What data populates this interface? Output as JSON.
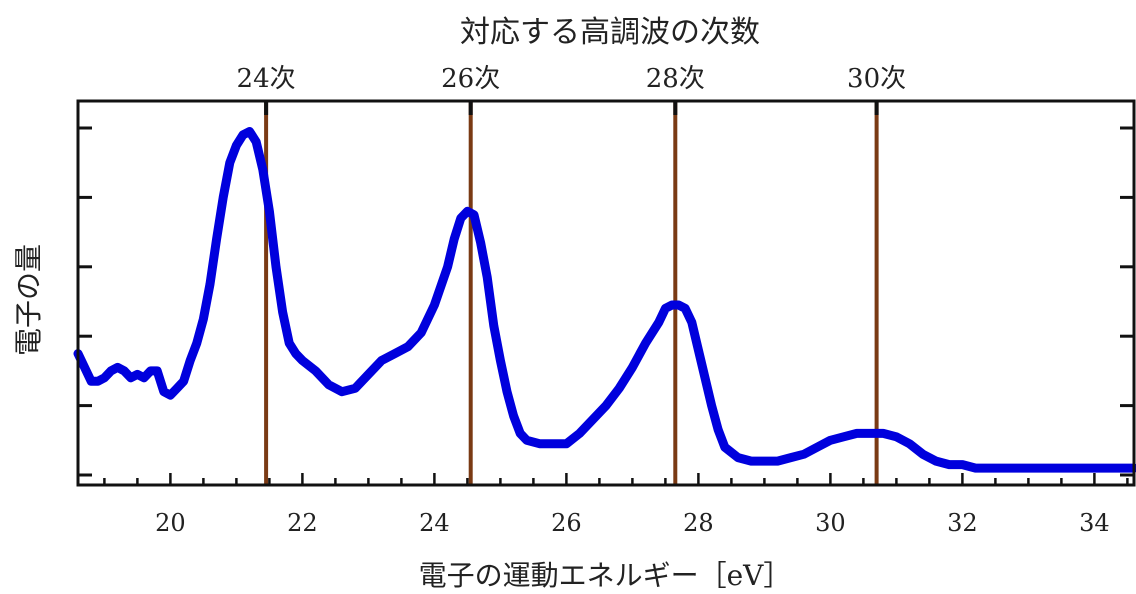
{
  "chart_data": {
    "type": "line",
    "top_title": "対応する高調波の次数",
    "xlabel": "電子の運動エネルギー［eV］",
    "ylabel": "電子の量",
    "xlim": [
      18.6,
      34.6
    ],
    "ylim": [
      0,
      1
    ],
    "x_ticks": [
      20,
      22,
      24,
      26,
      28,
      30,
      32,
      34
    ],
    "y_ticks": [
      0,
      0.2,
      0.4,
      0.6,
      0.8,
      1.0
    ],
    "y_tick_labels_shown": false,
    "grid": false,
    "harmonics": [
      {
        "label": "24次",
        "energy": 21.45
      },
      {
        "label": "26次",
        "energy": 24.55
      },
      {
        "label": "28次",
        "energy": 27.65
      },
      {
        "label": "30次",
        "energy": 30.7
      }
    ],
    "series": [
      {
        "color": "#0000dd",
        "x": [
          18.6,
          18.8,
          18.9,
          19.0,
          19.1,
          19.2,
          19.3,
          19.4,
          19.5,
          19.6,
          19.7,
          19.8,
          19.9,
          20.0,
          20.1,
          20.2,
          20.3,
          20.4,
          20.5,
          20.6,
          20.7,
          20.8,
          20.9,
          21.0,
          21.1,
          21.2,
          21.3,
          21.4,
          21.5,
          21.6,
          21.7,
          21.8,
          21.9,
          22.0,
          22.2,
          22.4,
          22.6,
          22.8,
          23.0,
          23.2,
          23.4,
          23.6,
          23.8,
          24.0,
          24.2,
          24.3,
          24.4,
          24.5,
          24.6,
          24.7,
          24.8,
          24.9,
          25.0,
          25.1,
          25.2,
          25.3,
          25.4,
          25.6,
          25.8,
          26.0,
          26.2,
          26.4,
          26.6,
          26.8,
          27.0,
          27.2,
          27.4,
          27.5,
          27.6,
          27.7,
          27.8,
          27.9,
          28.0,
          28.1,
          28.2,
          28.3,
          28.4,
          28.6,
          28.8,
          29.0,
          29.2,
          29.4,
          29.6,
          29.8,
          30.0,
          30.2,
          30.4,
          30.6,
          30.8,
          31.0,
          31.2,
          31.4,
          31.6,
          31.8,
          32.0,
          32.2,
          32.5,
          33.0,
          33.5,
          34.0,
          34.6
        ],
        "y": [
          0.35,
          0.27,
          0.27,
          0.28,
          0.3,
          0.31,
          0.3,
          0.28,
          0.29,
          0.28,
          0.3,
          0.3,
          0.24,
          0.23,
          0.25,
          0.27,
          0.33,
          0.38,
          0.45,
          0.55,
          0.68,
          0.8,
          0.9,
          0.95,
          0.98,
          0.99,
          0.96,
          0.88,
          0.76,
          0.6,
          0.47,
          0.38,
          0.35,
          0.33,
          0.3,
          0.26,
          0.24,
          0.25,
          0.29,
          0.33,
          0.35,
          0.37,
          0.41,
          0.49,
          0.6,
          0.68,
          0.74,
          0.76,
          0.75,
          0.67,
          0.57,
          0.43,
          0.33,
          0.24,
          0.17,
          0.12,
          0.1,
          0.09,
          0.09,
          0.09,
          0.12,
          0.16,
          0.2,
          0.25,
          0.31,
          0.38,
          0.44,
          0.48,
          0.49,
          0.49,
          0.48,
          0.44,
          0.36,
          0.28,
          0.2,
          0.13,
          0.08,
          0.05,
          0.04,
          0.04,
          0.04,
          0.05,
          0.06,
          0.08,
          0.1,
          0.11,
          0.12,
          0.12,
          0.12,
          0.11,
          0.09,
          0.06,
          0.04,
          0.03,
          0.03,
          0.02,
          0.02,
          0.02,
          0.02,
          0.02,
          0.02
        ]
      }
    ]
  }
}
